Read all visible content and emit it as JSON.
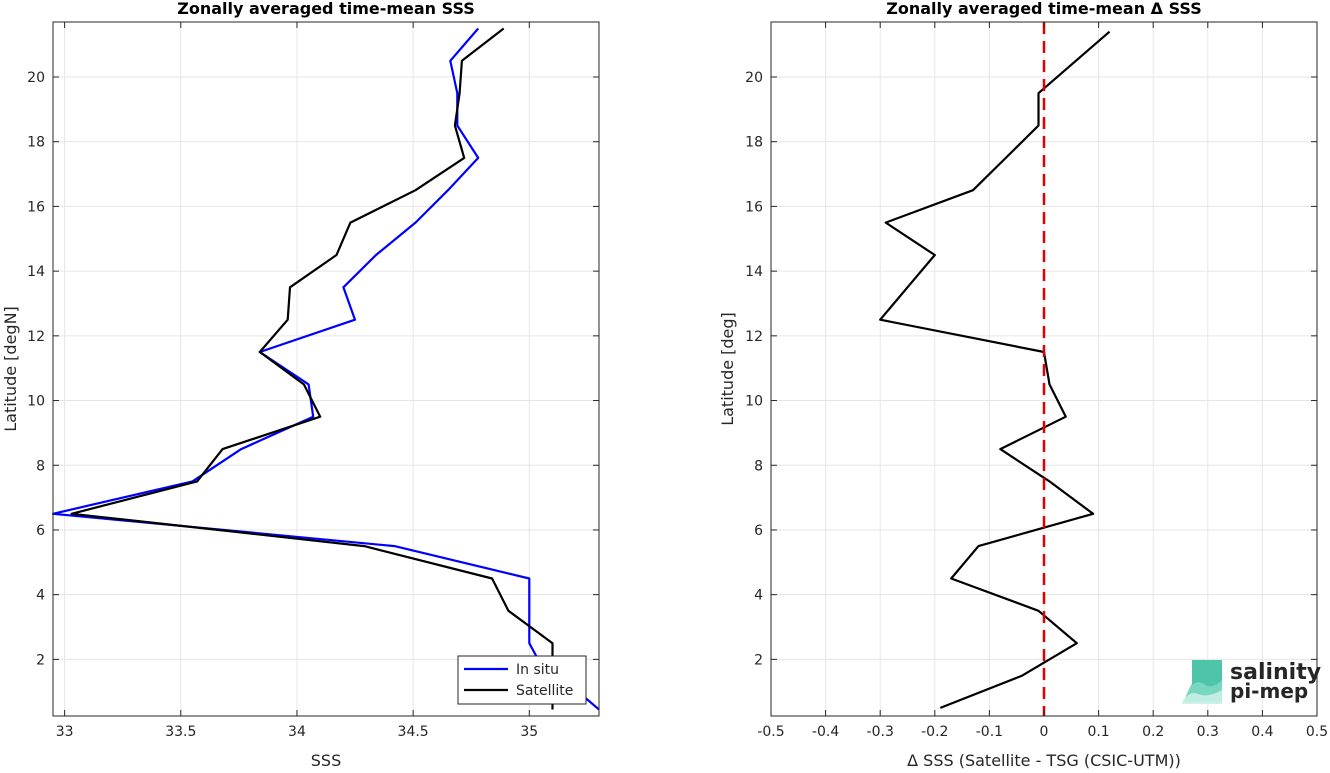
{
  "chart_data": [
    {
      "type": "line",
      "title": "Zonally averaged time-mean SSS",
      "xlabel": "SSS",
      "ylabel": "Latitude [degN]",
      "xlim": [
        32.95,
        35.3
      ],
      "ylim": [
        0.25,
        21.7
      ],
      "xticks": [
        33,
        33.5,
        34,
        34.5,
        35
      ],
      "xtick_labels": [
        "33",
        "33.5",
        "34",
        "34.5",
        "35"
      ],
      "yticks": [
        2,
        4,
        6,
        8,
        10,
        12,
        14,
        16,
        18,
        20
      ],
      "ytick_labels": [
        "2",
        "4",
        "6",
        "8",
        "10",
        "12",
        "14",
        "16",
        "18",
        "20"
      ],
      "grid": true,
      "legend": "bottom-right",
      "series": [
        {
          "name": "In situ",
          "color": "#0000ff",
          "points": [
            [
              35.3,
              0.45
            ],
            [
              35.03,
              2.1
            ],
            [
              35.0,
              2.5
            ],
            [
              35.0,
              3.5
            ],
            [
              35.0,
              4.5
            ],
            [
              34.42,
              5.5
            ],
            [
              32.95,
              6.5
            ],
            [
              33.55,
              7.5
            ],
            [
              33.76,
              8.5
            ],
            [
              34.07,
              9.5
            ],
            [
              34.05,
              10.5
            ],
            [
              33.84,
              11.5
            ],
            [
              34.25,
              12.5
            ],
            [
              34.2,
              13.5
            ],
            [
              34.34,
              14.5
            ],
            [
              34.51,
              15.5
            ],
            [
              34.65,
              16.5
            ],
            [
              34.78,
              17.5
            ],
            [
              34.69,
              18.5
            ],
            [
              34.69,
              19.5
            ],
            [
              34.66,
              20.5
            ],
            [
              34.78,
              21.5
            ]
          ]
        },
        {
          "name": "Satellite",
          "color": "#000000",
          "points": [
            [
              35.1,
              0.45
            ],
            [
              35.1,
              2.5
            ],
            [
              34.91,
              3.5
            ],
            [
              34.84,
              4.5
            ],
            [
              34.29,
              5.5
            ],
            [
              33.03,
              6.5
            ],
            [
              33.57,
              7.5
            ],
            [
              33.68,
              8.5
            ],
            [
              34.1,
              9.5
            ],
            [
              34.03,
              10.5
            ],
            [
              33.84,
              11.5
            ],
            [
              33.96,
              12.5
            ],
            [
              33.97,
              13.5
            ],
            [
              34.17,
              14.5
            ],
            [
              34.23,
              15.5
            ],
            [
              34.51,
              16.5
            ],
            [
              34.72,
              17.5
            ],
            [
              34.68,
              18.5
            ],
            [
              34.7,
              19.5
            ],
            [
              34.71,
              20.5
            ],
            [
              34.89,
              21.5
            ]
          ]
        }
      ]
    },
    {
      "type": "line",
      "title": "Zonally averaged time-mean Δ SSS",
      "xlabel": "Δ SSS (Satellite - TSG (CSIC-UTM))",
      "ylabel": "Latitude [deg]",
      "xlim": [
        -0.5,
        0.5
      ],
      "ylim": [
        0.25,
        21.7
      ],
      "xticks": [
        -0.5,
        -0.4,
        -0.3,
        -0.2,
        -0.1,
        0,
        0.1,
        0.2,
        0.3,
        0.4,
        0.5
      ],
      "xtick_labels": [
        "-0.5",
        "-0.4",
        "-0.3",
        "-0.2",
        "-0.1",
        "0",
        "0.1",
        "0.2",
        "0.3",
        "0.4",
        "0.5"
      ],
      "yticks": [
        2,
        4,
        6,
        8,
        10,
        12,
        14,
        16,
        18,
        20
      ],
      "ytick_labels": [
        "2",
        "4",
        "6",
        "8",
        "10",
        "12",
        "14",
        "16",
        "18",
        "20"
      ],
      "grid": true,
      "reference_line": {
        "x": 0,
        "color": "#e00000",
        "style": "dashed"
      },
      "series": [
        {
          "color": "#000000",
          "points": [
            [
              -0.19,
              0.5
            ],
            [
              -0.04,
              1.5
            ],
            [
              0.06,
              2.5
            ],
            [
              -0.01,
              3.5
            ],
            [
              -0.17,
              4.5
            ],
            [
              -0.12,
              5.5
            ],
            [
              0.09,
              6.5
            ],
            [
              0.01,
              7.5
            ],
            [
              -0.08,
              8.5
            ],
            [
              0.04,
              9.5
            ],
            [
              0.01,
              10.5
            ],
            [
              0.0,
              11.5
            ],
            [
              -0.3,
              12.5
            ],
            [
              -0.25,
              13.5
            ],
            [
              -0.2,
              14.5
            ],
            [
              -0.29,
              15.5
            ],
            [
              -0.13,
              16.5
            ],
            [
              -0.07,
              17.5
            ],
            [
              -0.01,
              18.5
            ],
            [
              -0.01,
              19.5
            ],
            [
              0.12,
              21.4
            ]
          ]
        }
      ]
    }
  ],
  "logo": {
    "line1": "salinity",
    "line2": "pi-mep",
    "color": "#1aa58c"
  }
}
